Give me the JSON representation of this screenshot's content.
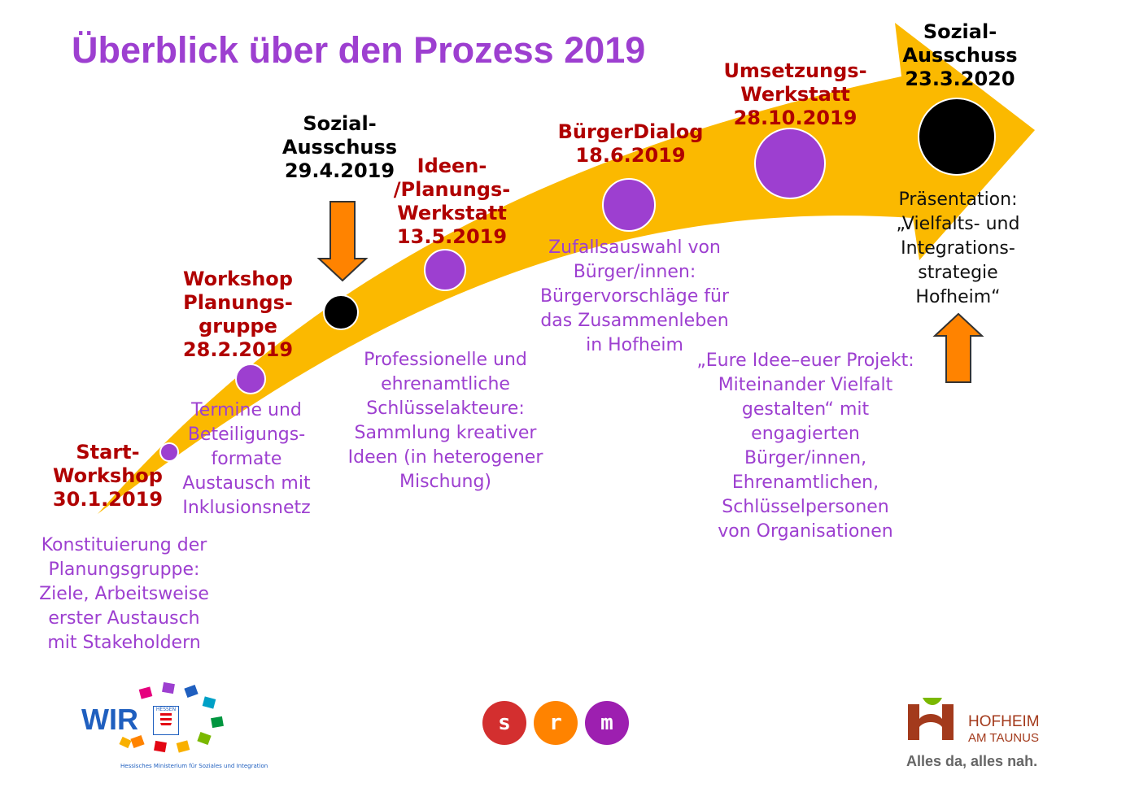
{
  "title": "Überblick über den Prozess 2019",
  "colors": {
    "arrow": "#fbb900",
    "purple": "#9d3fd0",
    "red": "#b00000",
    "orange": "#ff8300"
  },
  "milestones": [
    {
      "label": "Start-\nWorkshop\n30.1.2019",
      "desc": "Konstituierung der\nPlanungsgruppe:\nZiele, Arbeitsweise\nerster Austausch\nmit Stakeholdern"
    },
    {
      "label": "Workshop\nPlanungs-\ngruppe\n28.2.2019",
      "desc": "Termine und\nBeteiligungs-\nformate\nAustausch mit\nInklusionsnetz"
    },
    {
      "label": "Sozial-\nAusschuss\n29.4.2019"
    },
    {
      "label": "Ideen-\n/Planungs-\nWerkstatt\n13.5.2019",
      "desc": "Professionelle und\nehrenamtliche\nSchlüsselakteure:\nSammlung kreativer\nIdeen (in heterogener\nMischung)"
    },
    {
      "label": "BürgerDialog\n18.6.2019",
      "desc": "Zufallsauswahl von\nBürger/innen:\nBürgervorschläge für\ndas Zusammenleben\nin Hofheim"
    },
    {
      "label": "Umsetzungs-\nWerkstatt\n28.10.2019",
      "desc": "„Eure Idee–euer Projekt:\nMiteinander Vielfalt\ngestalten“ mit\nengagierten\nBürger/innen,\nEhrenamtlichen,\nSchlüsselpersonen\nvon Organisationen"
    },
    {
      "label": "Sozial-\nAusschuss\n23.3.2020",
      "desc": "Präsentation:\n„Vielfalts- und\nIntegrations-\nstrategie\nHofheim“"
    }
  ],
  "logos": {
    "wir": {
      "text": "WIR",
      "badge": "HESSEN",
      "caption": "Hessisches Ministerium für Soziales und Integration"
    },
    "srm": [
      "s",
      "r",
      "m"
    ],
    "hofheim": {
      "name_line1": "HOFHEIM",
      "name_line2": "AM TAUNUS",
      "slogan": "Alles da, alles nah."
    }
  }
}
